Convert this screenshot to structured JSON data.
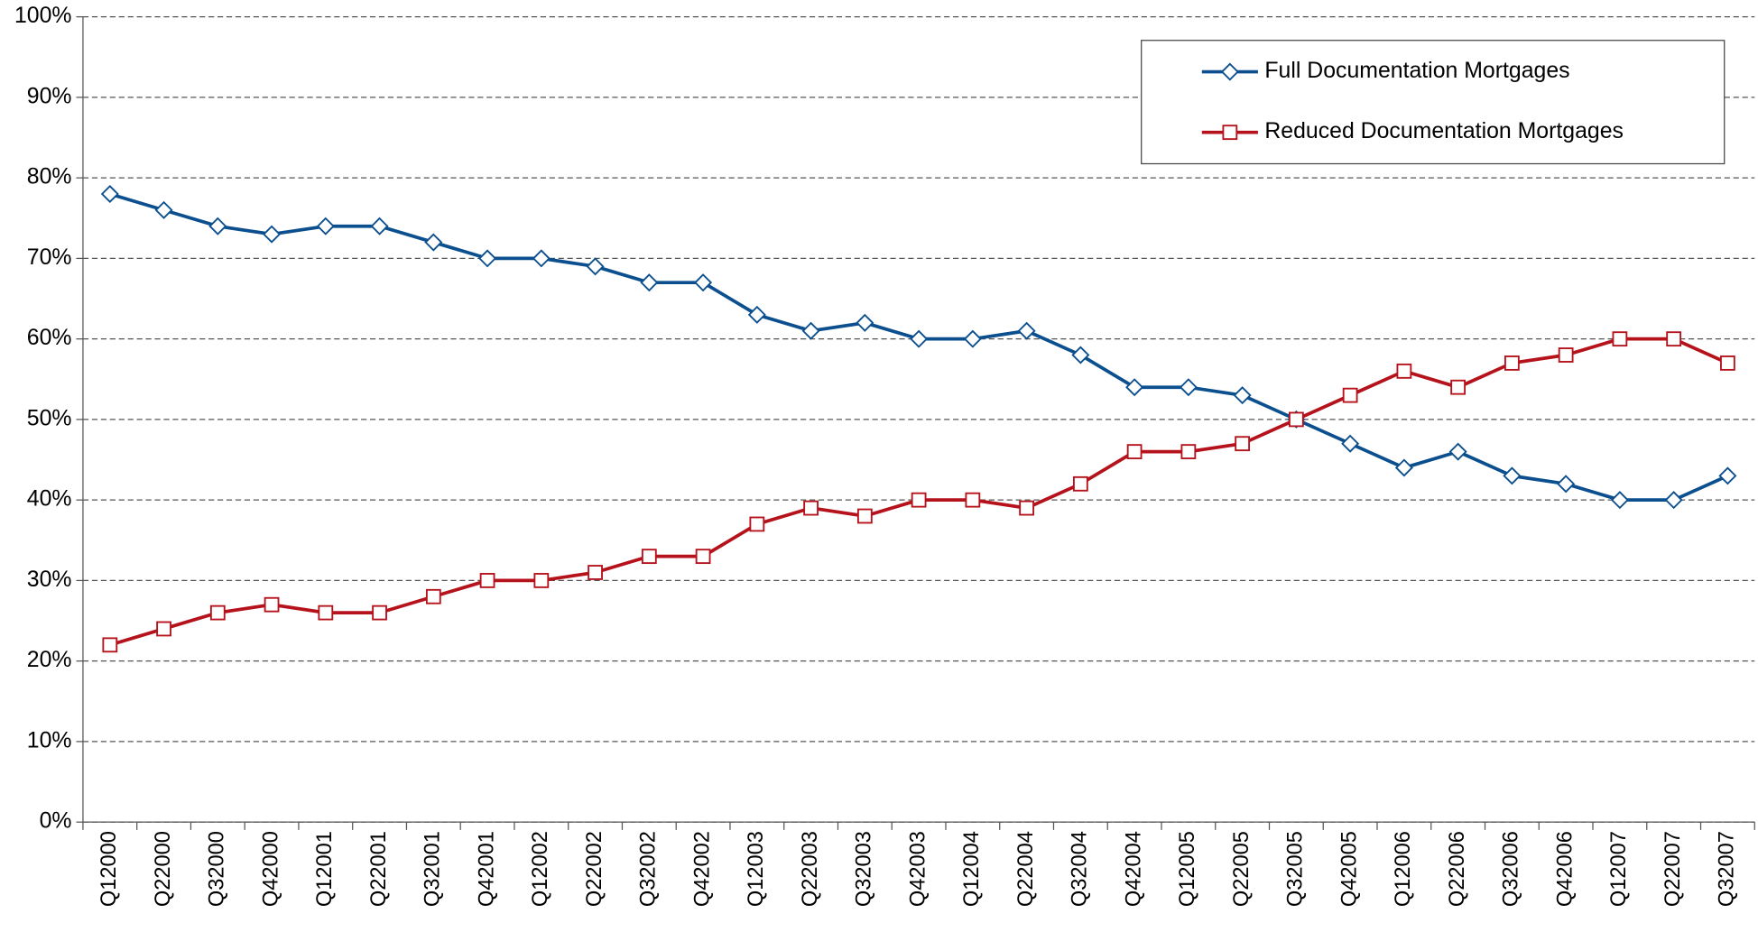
{
  "chart_data": {
    "type": "line",
    "categories": [
      "Q12000",
      "Q22000",
      "Q32000",
      "Q42000",
      "Q12001",
      "Q22001",
      "Q32001",
      "Q42001",
      "Q12002",
      "Q22002",
      "Q32002",
      "Q42002",
      "Q12003",
      "Q22003",
      "Q32003",
      "Q42003",
      "Q12004",
      "Q22004",
      "Q32004",
      "Q42004",
      "Q12005",
      "Q22005",
      "Q32005",
      "Q42005",
      "Q12006",
      "Q22006",
      "Q32006",
      "Q42006",
      "Q12007",
      "Q22007",
      "Q32007"
    ],
    "series": [
      {
        "name": "Full Documentation Mortgages",
        "color": "#0b4f8f",
        "marker": "diamond",
        "values": [
          78,
          76,
          74,
          73,
          74,
          74,
          72,
          70,
          70,
          69,
          67,
          67,
          63,
          61,
          62,
          60,
          60,
          61,
          58,
          54,
          54,
          53,
          50,
          47,
          44,
          46,
          43,
          42,
          40,
          40,
          43
        ]
      },
      {
        "name": "Reduced Documentation Mortgages",
        "color": "#b5121b",
        "marker": "square",
        "values": [
          22,
          24,
          26,
          27,
          26,
          26,
          28,
          30,
          30,
          31,
          33,
          33,
          37,
          39,
          38,
          40,
          40,
          39,
          42,
          46,
          46,
          47,
          50,
          53,
          56,
          54,
          57,
          58,
          60,
          60,
          57
        ]
      }
    ],
    "ylim": [
      0,
      100
    ],
    "yticks": [
      {
        "value": 0,
        "label": "0%"
      },
      {
        "value": 10,
        "label": "10%"
      },
      {
        "value": 20,
        "label": "20%"
      },
      {
        "value": 30,
        "label": "30%"
      },
      {
        "value": 40,
        "label": "40%"
      },
      {
        "value": 50,
        "label": "50%"
      },
      {
        "value": 60,
        "label": "60%"
      },
      {
        "value": 70,
        "label": "70%"
      },
      {
        "value": 80,
        "label": "80%"
      },
      {
        "value": 90,
        "label": "90%"
      },
      {
        "value": 100,
        "label": "100%"
      }
    ],
    "grid": true,
    "legend": "upper right"
  }
}
